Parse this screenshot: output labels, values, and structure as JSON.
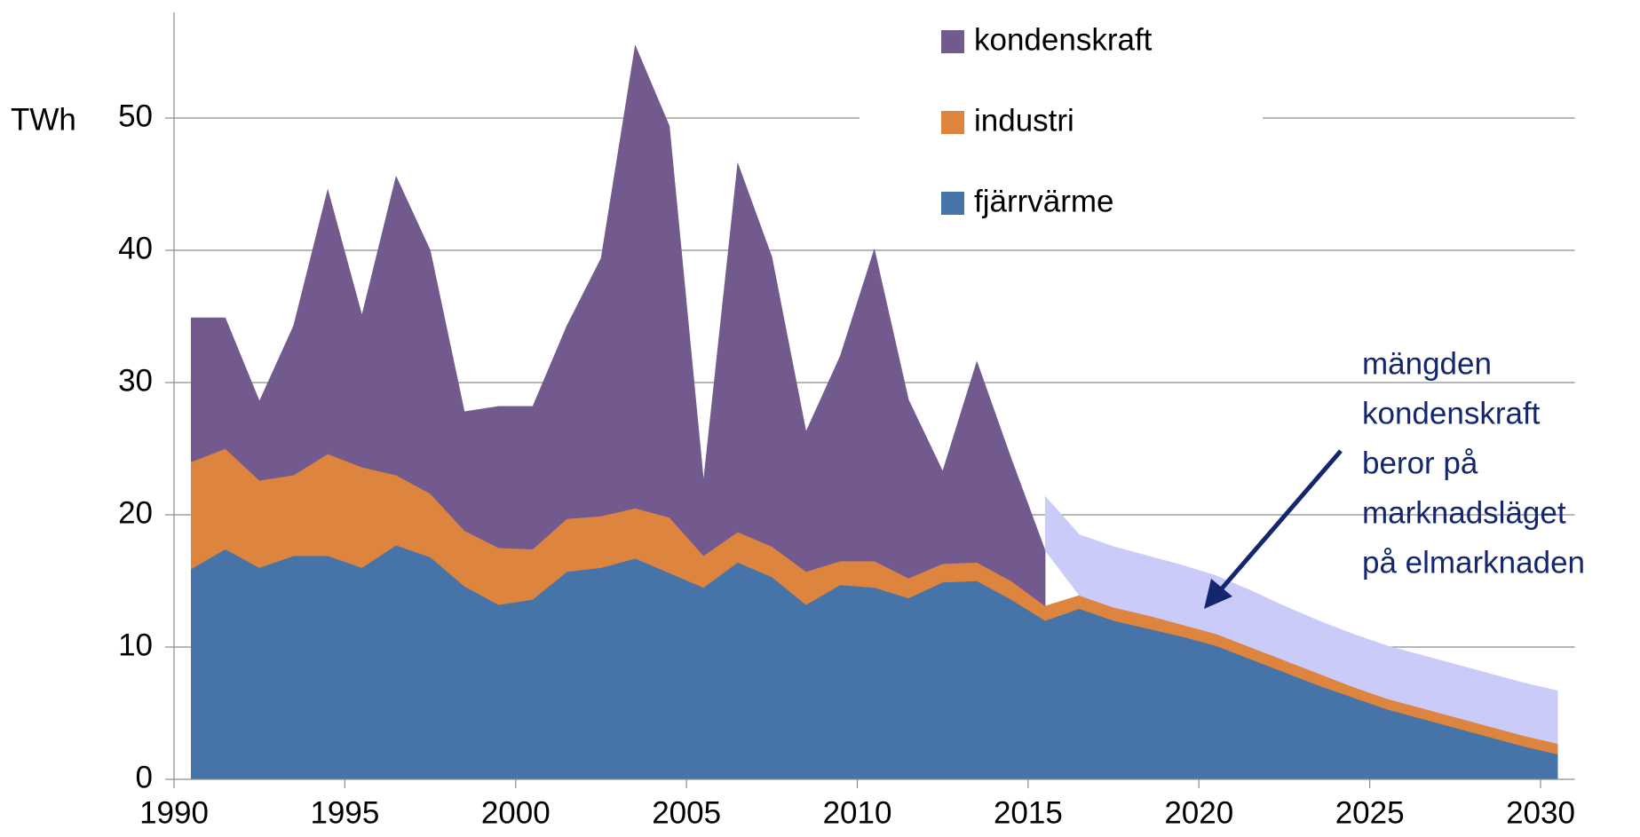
{
  "chart_data": {
    "type": "area",
    "y_label": "TWh",
    "x": [
      1990.5,
      1991.5,
      1992.5,
      1993.5,
      1994.5,
      1995.5,
      1996.5,
      1997.5,
      1998.5,
      1999.5,
      2000.5,
      2001.5,
      2002.5,
      2003.5,
      2004.5,
      2005.5,
      2006.5,
      2007.5,
      2008.5,
      2009.5,
      2010.5,
      2011.5,
      2012.5,
      2013.5,
      2014.5,
      2015.5,
      2016.5,
      2017.5,
      2018.5,
      2019.5,
      2020.5,
      2021.5,
      2022.5,
      2023.5,
      2024.5,
      2025.5,
      2026.5,
      2027.5,
      2028.5,
      2029.5,
      2030.5
    ],
    "series": [
      {
        "name": "fjärrvärme",
        "color": "#4674a8",
        "values": [
          15.9,
          17.4,
          16.0,
          16.9,
          16.9,
          16.0,
          17.7,
          16.8,
          14.6,
          13.2,
          13.6,
          15.7,
          16.0,
          16.7,
          15.6,
          14.5,
          16.4,
          15.3,
          13.2,
          14.7,
          14.5,
          13.7,
          14.9,
          15.0,
          13.6,
          12.0,
          12.9,
          12.0,
          11.4,
          10.8,
          10.1,
          9.1,
          8.1,
          7.1,
          6.2,
          5.3,
          4.6,
          3.9,
          3.2,
          2.5,
          1.9
        ]
      },
      {
        "name": "industri",
        "color": "#dd843f",
        "values": [
          8.1,
          7.6,
          6.6,
          6.1,
          7.7,
          7.6,
          5.3,
          4.8,
          4.2,
          4.3,
          3.8,
          4.0,
          3.9,
          3.8,
          4.2,
          2.4,
          2.3,
          2.3,
          2.5,
          1.8,
          2.0,
          1.5,
          1.4,
          1.4,
          1.4,
          1.1,
          1.0,
          1.0,
          1.0,
          0.9,
          0.9,
          0.9,
          0.9,
          0.9,
          0.8,
          0.8,
          0.8,
          0.8,
          0.8,
          0.8,
          0.8
        ]
      },
      {
        "name": "kondenskraft",
        "color": "#725a8e",
        "values": [
          10.9,
          9.9,
          6.0,
          11.3,
          20.0,
          11.5,
          22.6,
          18.4,
          9.0,
          10.7,
          10.8,
          14.6,
          19.5,
          35.0,
          29.6,
          5.7,
          27.9,
          21.9,
          10.6,
          15.5,
          23.6,
          13.5,
          7.0,
          15.2,
          9.3,
          4.2,
          null,
          null,
          null,
          null,
          null,
          null,
          null,
          null,
          null,
          null,
          null,
          null,
          null,
          null,
          null
        ]
      },
      {
        "color": "#cbcbf9",
        "values": [
          null,
          null,
          null,
          null,
          null,
          null,
          null,
          null,
          null,
          null,
          null,
          null,
          null,
          null,
          null,
          null,
          null,
          null,
          null,
          null,
          null,
          null,
          null,
          null,
          null,
          4.1,
          4.6,
          4.6,
          4.5,
          4.5,
          4.4,
          4.3,
          4.1,
          4.0,
          4.0,
          4.0,
          4.0,
          4.0,
          4.0,
          4.0,
          4.0
        ]
      }
    ],
    "xlim": [
      1990,
      2031
    ],
    "xticks": [
      1990,
      1995,
      2000,
      2005,
      2010,
      2015,
      2020,
      2025,
      2030
    ],
    "ylim": [
      0,
      58
    ],
    "yticks": [
      0,
      10,
      20,
      30,
      40,
      50
    ],
    "grid": true,
    "annotation": [
      "mängden",
      "kondenskraft",
      "beror på",
      "marknadsläget",
      "på elmarknaden"
    ]
  }
}
